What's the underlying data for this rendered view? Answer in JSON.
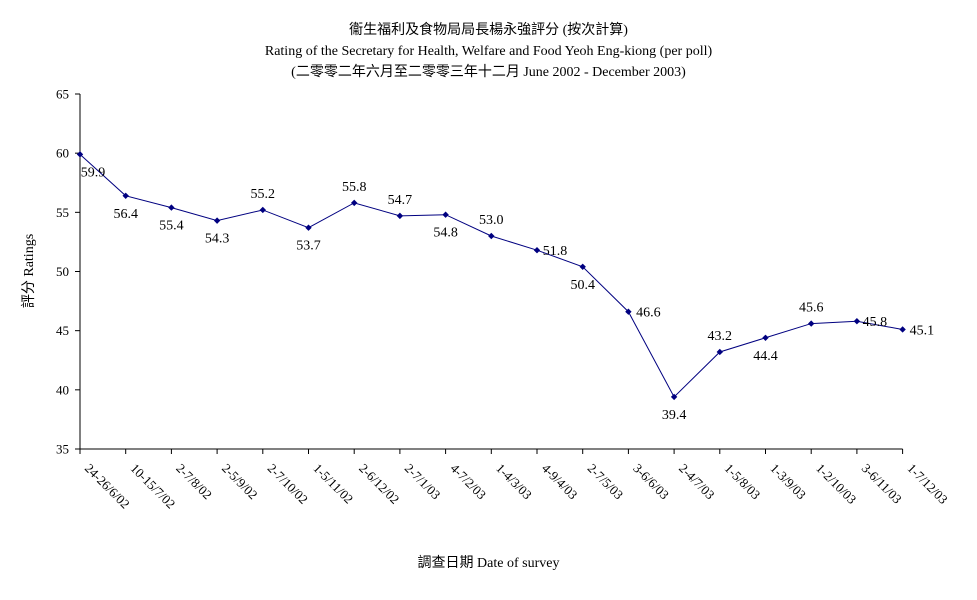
{
  "chart_data": {
    "type": "line",
    "title": "衞生福利及食物局局長楊永強評分 (按次計算)",
    "subtitle": "Rating of the Secretary for Health, Welfare and Food Yeoh Eng-kiong (per poll)",
    "subtitle2": "(二零零二年六月至二零零三年十二月 June 2002 - December 2003)",
    "xlabel": "調查日期 Date of survey",
    "ylabel": "評分 Ratings",
    "ylim": [
      35,
      65
    ],
    "yticks": [
      35,
      40,
      45,
      50,
      55,
      60,
      65
    ],
    "categories": [
      "24-26/6/02",
      "10-15/7/02",
      "2-7/8/02",
      "2-5/9/02",
      "2-7/10/02",
      "1-5/11/02",
      "2-6/12/02",
      "2-7/1/03",
      "4-7/2/03",
      "1-4/3/03",
      "4-9/4/03",
      "2-7/5/03",
      "3-6/6/03",
      "2-4/7/03",
      "1-5/8/03",
      "1-3/9/03",
      "1-2/10/03",
      "3-6/11/03",
      "1-7/12/03"
    ],
    "values": [
      59.9,
      56.4,
      55.4,
      54.3,
      55.2,
      53.7,
      55.8,
      54.7,
      54.8,
      53.0,
      51.8,
      50.4,
      46.6,
      39.4,
      43.2,
      44.4,
      45.6,
      45.8,
      45.1
    ],
    "data_labels": [
      "59.9",
      "56.4",
      "55.4",
      "54.3",
      "55.2",
      "53.7",
      "55.8",
      "54.7",
      "54.8",
      "53.0",
      "51.8",
      "50.4",
      "46.6",
      "39.4",
      "43.2",
      "44.4",
      "45.6",
      "45.8",
      "45.1"
    ],
    "grid": false,
    "legend": "none",
    "line_color": "#000080",
    "marker": "diamond"
  }
}
